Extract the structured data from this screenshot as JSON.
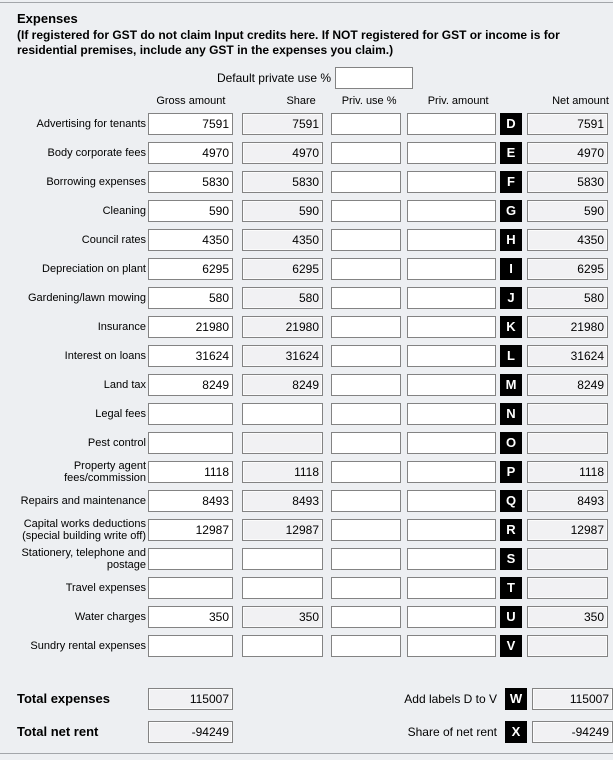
{
  "header": {
    "title": "Expenses",
    "instructions": "(If registered for GST do not claim Input credits here. If NOT registered for GST or income is for residential premises, include any GST in the expenses you claim.)"
  },
  "default_private_use": {
    "label": "Default private use %",
    "value": ""
  },
  "columns": {
    "gross": "Gross amount",
    "share": "Share",
    "priv_use": "Priv. use %",
    "priv_amount": "Priv. amount",
    "net": "Net amount"
  },
  "rows": [
    {
      "label": "Advertising for tenants",
      "letter": "D",
      "gross": "7591",
      "share": "7591",
      "priv_use": "",
      "priv_amount": "",
      "net": "7591",
      "share_gray": true
    },
    {
      "label": "Body corporate fees",
      "letter": "E",
      "gross": "4970",
      "share": "4970",
      "priv_use": "",
      "priv_amount": "",
      "net": "4970",
      "share_gray": true
    },
    {
      "label": "Borrowing expenses",
      "letter": "F",
      "gross": "5830",
      "share": "5830",
      "priv_use": "",
      "priv_amount": "",
      "net": "5830",
      "share_gray": true
    },
    {
      "label": "Cleaning",
      "letter": "G",
      "gross": "590",
      "share": "590",
      "priv_use": "",
      "priv_amount": "",
      "net": "590",
      "share_gray": true
    },
    {
      "label": "Council rates",
      "letter": "H",
      "gross": "4350",
      "share": "4350",
      "priv_use": "",
      "priv_amount": "",
      "net": "4350",
      "share_gray": true
    },
    {
      "label": "Depreciation on plant",
      "letter": "I",
      "gross": "6295",
      "share": "6295",
      "priv_use": "",
      "priv_amount": "",
      "net": "6295",
      "share_gray": true
    },
    {
      "label": "Gardening/lawn mowing",
      "letter": "J",
      "gross": "580",
      "share": "580",
      "priv_use": "",
      "priv_amount": "",
      "net": "580",
      "share_gray": true
    },
    {
      "label": "Insurance",
      "letter": "K",
      "gross": "21980",
      "share": "21980",
      "priv_use": "",
      "priv_amount": "",
      "net": "21980",
      "share_gray": true
    },
    {
      "label": "Interest on loans",
      "letter": "L",
      "gross": "31624",
      "share": "31624",
      "priv_use": "",
      "priv_amount": "",
      "net": "31624",
      "share_gray": true
    },
    {
      "label": "Land tax",
      "letter": "M",
      "gross": "8249",
      "share": "8249",
      "priv_use": "",
      "priv_amount": "",
      "net": "8249",
      "share_gray": true
    },
    {
      "label": "Legal fees",
      "letter": "N",
      "gross": "",
      "share": "",
      "priv_use": "",
      "priv_amount": "",
      "net": "",
      "share_gray": false
    },
    {
      "label": "Pest control",
      "letter": "O",
      "gross": "",
      "share": "",
      "priv_use": "",
      "priv_amount": "",
      "net": "",
      "share_gray": true
    },
    {
      "label": "Property agent fees/commission",
      "letter": "P",
      "gross": "1118",
      "share": "1118",
      "priv_use": "",
      "priv_amount": "",
      "net": "1118",
      "share_gray": true
    },
    {
      "label": "Repairs and maintenance",
      "letter": "Q",
      "gross": "8493",
      "share": "8493",
      "priv_use": "",
      "priv_amount": "",
      "net": "8493",
      "share_gray": true
    },
    {
      "label": "Capital works deductions (special building write off)",
      "letter": "R",
      "gross": "12987",
      "share": "12987",
      "priv_use": "",
      "priv_amount": "",
      "net": "12987",
      "share_gray": true
    },
    {
      "label": "Stationery, telephone and postage",
      "letter": "S",
      "gross": "",
      "share": "",
      "priv_use": "",
      "priv_amount": "",
      "net": "",
      "share_gray": false
    },
    {
      "label": "Travel expenses",
      "letter": "T",
      "gross": "",
      "share": "",
      "priv_use": "",
      "priv_amount": "",
      "net": "",
      "share_gray": false
    },
    {
      "label": "Water charges",
      "letter": "U",
      "gross": "350",
      "share": "350",
      "priv_use": "",
      "priv_amount": "",
      "net": "350",
      "share_gray": true
    },
    {
      "label": "Sundry rental expenses",
      "letter": "V",
      "gross": "",
      "share": "",
      "priv_use": "",
      "priv_amount": "",
      "net": "",
      "share_gray": false
    }
  ],
  "totals": [
    {
      "label": "Total expenses",
      "value": "115007",
      "right_label": "Add labels D to V",
      "letter": "W",
      "right_value": "115007"
    },
    {
      "label": "Total net rent",
      "value": "-94249",
      "right_label": "Share of net rent",
      "letter": "X",
      "right_value": "-94249"
    }
  ],
  "colors": {
    "page_bg": "#edeff2",
    "field_border": "#838383",
    "readonly_field_bg": "#f1f1f3",
    "editable_field_bg": "#ffffff",
    "letter_badge_bg": "#000000",
    "letter_badge_text": "#ffffff",
    "rule_line": "#a3a6aa"
  }
}
